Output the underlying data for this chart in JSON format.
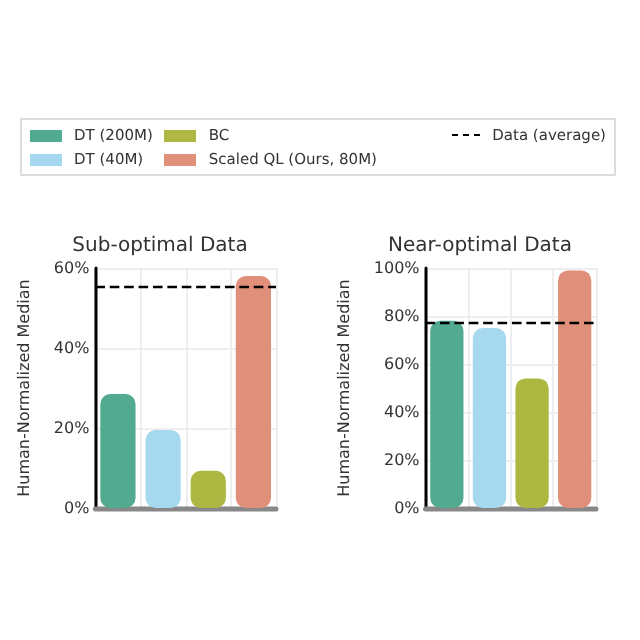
{
  "chart_data": [
    {
      "type": "bar",
      "title": "Sub-optimal Data",
      "ylabel": "Human-Normalized Median",
      "categories": [
        null,
        null,
        null,
        null
      ],
      "series": [
        {
          "name": "DT (200M)",
          "color": "#52ab91",
          "values": [
            28.5,
            null,
            null,
            null
          ]
        },
        {
          "name": "DT (40M)",
          "color": "#a6d9f0",
          "values": [
            null,
            19.5,
            null,
            null
          ]
        },
        {
          "name": "BC",
          "color": "#adb843",
          "values": [
            null,
            null,
            9.3,
            null
          ]
        },
        {
          "name": "Scaled QL (Ours, 80M)",
          "color": "#e0907a",
          "values": [
            null,
            null,
            null,
            58
          ]
        }
      ],
      "ylim": [
        0,
        60
      ],
      "yticks": [
        {
          "value": 0,
          "label": "0%"
        },
        {
          "value": 20,
          "label": "20%"
        },
        {
          "value": 40,
          "label": "40%"
        },
        {
          "value": 60,
          "label": "60%"
        }
      ],
      "ref_lines": [
        {
          "axis": "y",
          "value": 55.5,
          "label": "Data (average)",
          "color": "#000000",
          "line_style": "dashed"
        }
      ],
      "grid": true,
      "legend": "top",
      "tick_labels": "y"
    },
    {
      "type": "bar",
      "title": "Near-optimal Data",
      "ylabel": "Human-Normalized Median",
      "categories": [
        null,
        null,
        null,
        null
      ],
      "series": [
        {
          "name": "DT (200M)",
          "color": "#52ab91",
          "values": [
            78,
            null,
            null,
            null
          ]
        },
        {
          "name": "DT (40M)",
          "color": "#a6d9f0",
          "values": [
            null,
            75,
            null,
            null
          ]
        },
        {
          "name": "BC",
          "color": "#adb843",
          "values": [
            null,
            null,
            54,
            null
          ]
        },
        {
          "name": "Scaled QL (Ours, 80M)",
          "color": "#e0907a",
          "values": [
            null,
            null,
            null,
            99
          ]
        }
      ],
      "ylim": [
        0,
        100
      ],
      "yticks": [
        {
          "value": 0,
          "label": "0%"
        },
        {
          "value": 20,
          "label": "20%"
        },
        {
          "value": 40,
          "label": "40%"
        },
        {
          "value": 60,
          "label": "60%"
        },
        {
          "value": 80,
          "label": "80%"
        },
        {
          "value": 100,
          "label": "100%"
        }
      ],
      "ref_lines": [
        {
          "axis": "y",
          "value": 77.6,
          "color": "#000000",
          "line_style": "dashed"
        }
      ],
      "grid": true,
      "tick_labels": "y"
    }
  ]
}
